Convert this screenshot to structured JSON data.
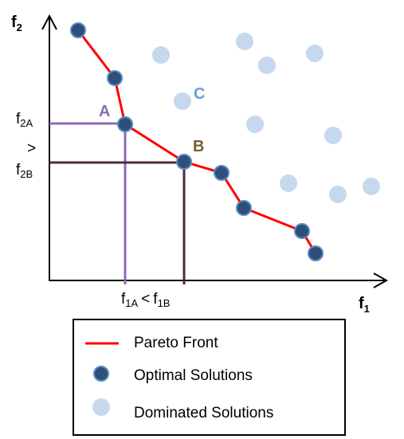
{
  "colors": {
    "pareto_line": "#ff0000",
    "optimal_fill": "#2e4f7a",
    "optimal_stroke": "#5a8bc2",
    "dominated_fill": "#c6d8ee",
    "label_A": "#8c6cb4",
    "label_B": "#7a5a36",
    "label_C": "#6a9cd8",
    "guide_A": "#8c6cb4",
    "guide_B": "#4e2a3c",
    "axis": "#000000"
  },
  "axes": {
    "x_label_main": "f",
    "x_label_sub": "1",
    "y_label_main": "f",
    "y_label_sub": "2"
  },
  "annotations": {
    "point_A": "A",
    "point_B": "B",
    "point_C": "C",
    "y_f2A_main": "f",
    "y_f2A_sub": "2A",
    "y_greater": ">",
    "y_f2B_main": "f",
    "y_f2B_sub": "2B",
    "x_f1A_main": "f",
    "x_f1A_sub": "1A",
    "x_less": "<",
    "x_f1B_main": "f",
    "x_f1B_sub": "1B"
  },
  "legend": {
    "pareto_front": "Pareto Front",
    "optimal_solutions": "Optimal Solutions",
    "dominated_solutions": "Dominated Solutions"
  }
}
